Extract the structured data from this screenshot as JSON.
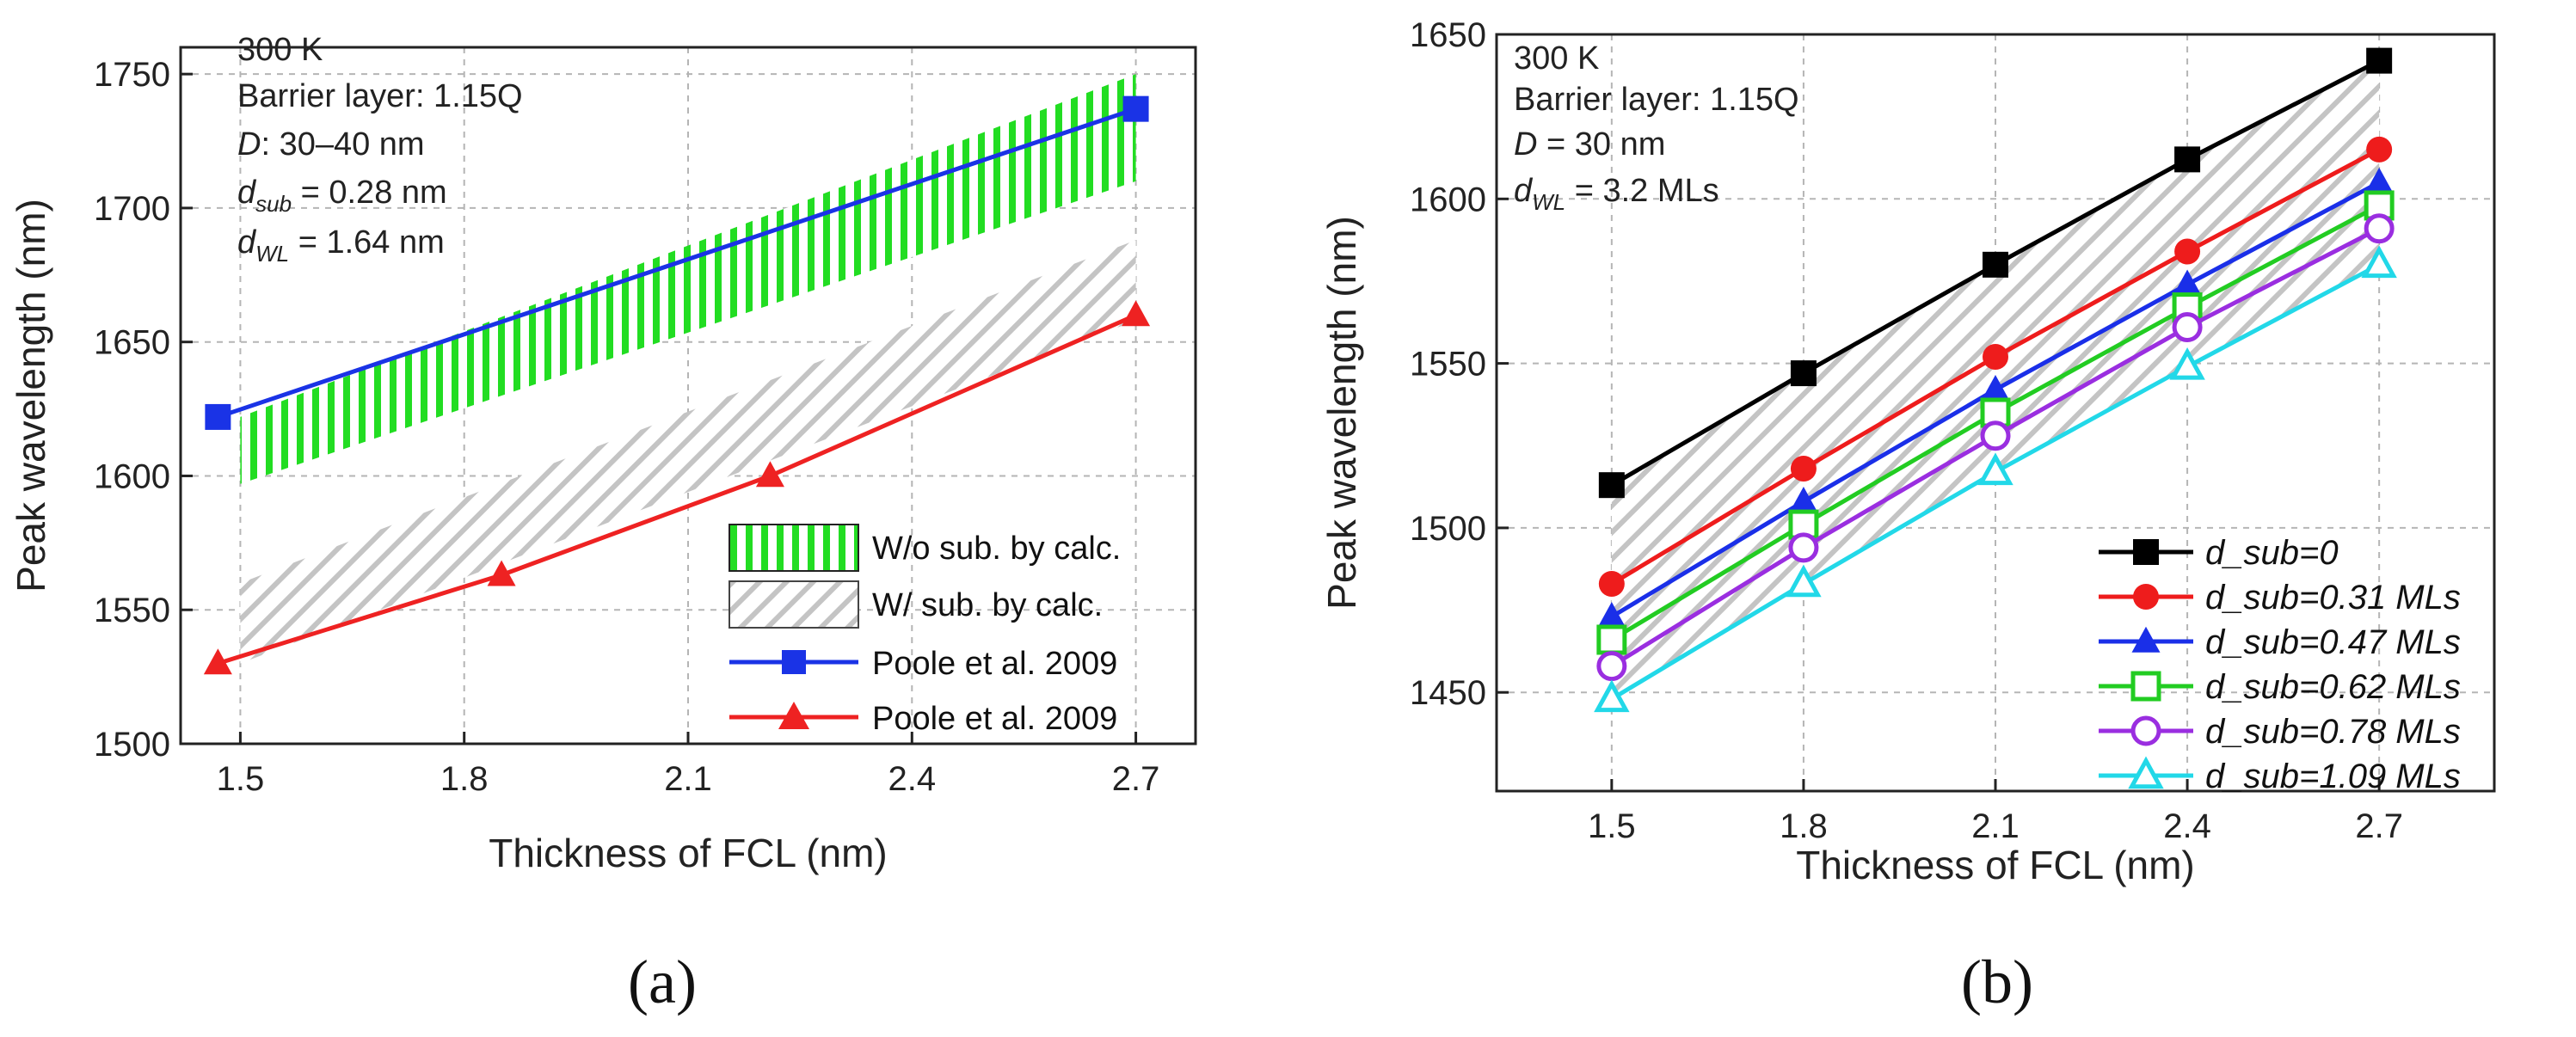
{
  "chart_data": [
    {
      "id": "a",
      "type": "line",
      "caption": "(a)",
      "xlabel": "Thickness of FCL (nm)",
      "ylabel": "Peak wavelength (nm)",
      "xlim": [
        1.42,
        2.78
      ],
      "ylim": [
        1500,
        1760
      ],
      "xticks": [
        1.5,
        1.8,
        2.1,
        2.4,
        2.7
      ],
      "xtick_labels": [
        "1.5",
        "1.8",
        "2.1",
        "2.4",
        "2.7"
      ],
      "yticks": [
        1500,
        1550,
        1600,
        1650,
        1700,
        1750
      ],
      "ytick_labels": [
        "1500",
        "1550",
        "1600",
        "1650",
        "1700",
        "1750"
      ],
      "grid": true,
      "annotations": {
        "line1": "300 K",
        "line2": "Barrier layer: 1.15Q",
        "d_italic": "D",
        "d_text": ": 30–40 nm",
        "dsub_italic": "d",
        "dsub_sub": "sub",
        "dsub_value": " = 0.28 nm",
        "dwl_italic": "d",
        "dwl_sub": "WL",
        "dwl_value": " = 1.64 nm"
      },
      "bands": [
        {
          "name": "W/o sub. by calc.",
          "color": "#22dd22",
          "style": "vertical-hatch",
          "x": [
            1.5,
            2.7
          ],
          "lower": [
            1597,
            1710
          ],
          "upper": [
            1622,
            1750
          ]
        },
        {
          "name": "W/ sub. by calc.",
          "color": "#c8c8c8",
          "style": "diagonal-hatch",
          "x": [
            1.5,
            2.7
          ],
          "lower": [
            1530,
            1658
          ],
          "upper": [
            1560,
            1688
          ]
        }
      ],
      "series": [
        {
          "name": "Poole et al. 2009",
          "color": "#1a33e6",
          "marker": "square-filled",
          "x": [
            1.47,
            2.7
          ],
          "y": [
            1622,
            1737
          ]
        },
        {
          "name": "Poole et al. 2009",
          "color": "#ee2222",
          "marker": "triangle-filled",
          "x": [
            1.47,
            1.85,
            2.21,
            2.7
          ],
          "y": [
            1530,
            1563,
            1600,
            1660
          ]
        }
      ],
      "legend_position": "lower-right"
    },
    {
      "id": "b",
      "type": "line",
      "caption": "(b)",
      "xlabel": "Thickness of FCL (nm)",
      "ylabel": "Peak wavelength (nm)",
      "xlim": [
        1.32,
        2.88
      ],
      "ylim": [
        1420,
        1650
      ],
      "xticks": [
        1.5,
        1.8,
        2.1,
        2.4,
        2.7
      ],
      "xtick_labels": [
        "1.5",
        "1.8",
        "2.1",
        "2.4",
        "2.7"
      ],
      "yticks": [
        1450,
        1500,
        1550,
        1600,
        1650
      ],
      "ytick_labels": [
        "1450",
        "1500",
        "1550",
        "1600",
        "1650"
      ],
      "grid": true,
      "annotations": {
        "line1": "300 K",
        "line2": "Barrier layer: 1.15Q",
        "d_italic": "D",
        "d_text": " = 30 nm",
        "dwl_italic": "d",
        "dwl_sub": "WL",
        "dwl_value": " = 3.2 MLs"
      },
      "bands": [
        {
          "name": "",
          "color": "#c8c8c8",
          "style": "diagonal-hatch",
          "x": [
            1.5,
            1.8,
            2.1,
            2.4,
            2.7
          ],
          "lower": [
            1448,
            1483,
            1517,
            1549,
            1580
          ],
          "upper": [
            1513,
            1547,
            1580,
            1612,
            1642
          ]
        }
      ],
      "x": [
        1.5,
        1.8,
        2.1,
        2.4,
        2.7
      ],
      "series": [
        {
          "name": "d_sub=0",
          "color": "#000000",
          "marker": "square-filled",
          "values": [
            1513,
            1547,
            1580,
            1612,
            1642
          ]
        },
        {
          "name": "d_sub=0.31 MLs",
          "color": "#ee1c1c",
          "marker": "circle-filled",
          "values": [
            1483,
            1518,
            1552,
            1584,
            1615
          ]
        },
        {
          "name": "d_sub=0.47 MLs",
          "color": "#1a2fe8",
          "marker": "triangle-filled",
          "values": [
            1473,
            1508,
            1542,
            1574,
            1605
          ]
        },
        {
          "name": "d_sub=0.62 MLs",
          "color": "#22cc22",
          "marker": "square-open",
          "values": [
            1466,
            1501,
            1535,
            1567,
            1598
          ]
        },
        {
          "name": "d_sub=0.78 MLs",
          "color": "#9a2ee0",
          "marker": "circle-open",
          "values": [
            1458,
            1494,
            1528,
            1561,
            1591
          ]
        },
        {
          "name": "d_sub=1.09 MLs",
          "color": "#22d8e8",
          "marker": "triangle-open",
          "values": [
            1448,
            1483,
            1517,
            1549,
            1580
          ]
        }
      ],
      "legend_position": "lower-right"
    }
  ]
}
